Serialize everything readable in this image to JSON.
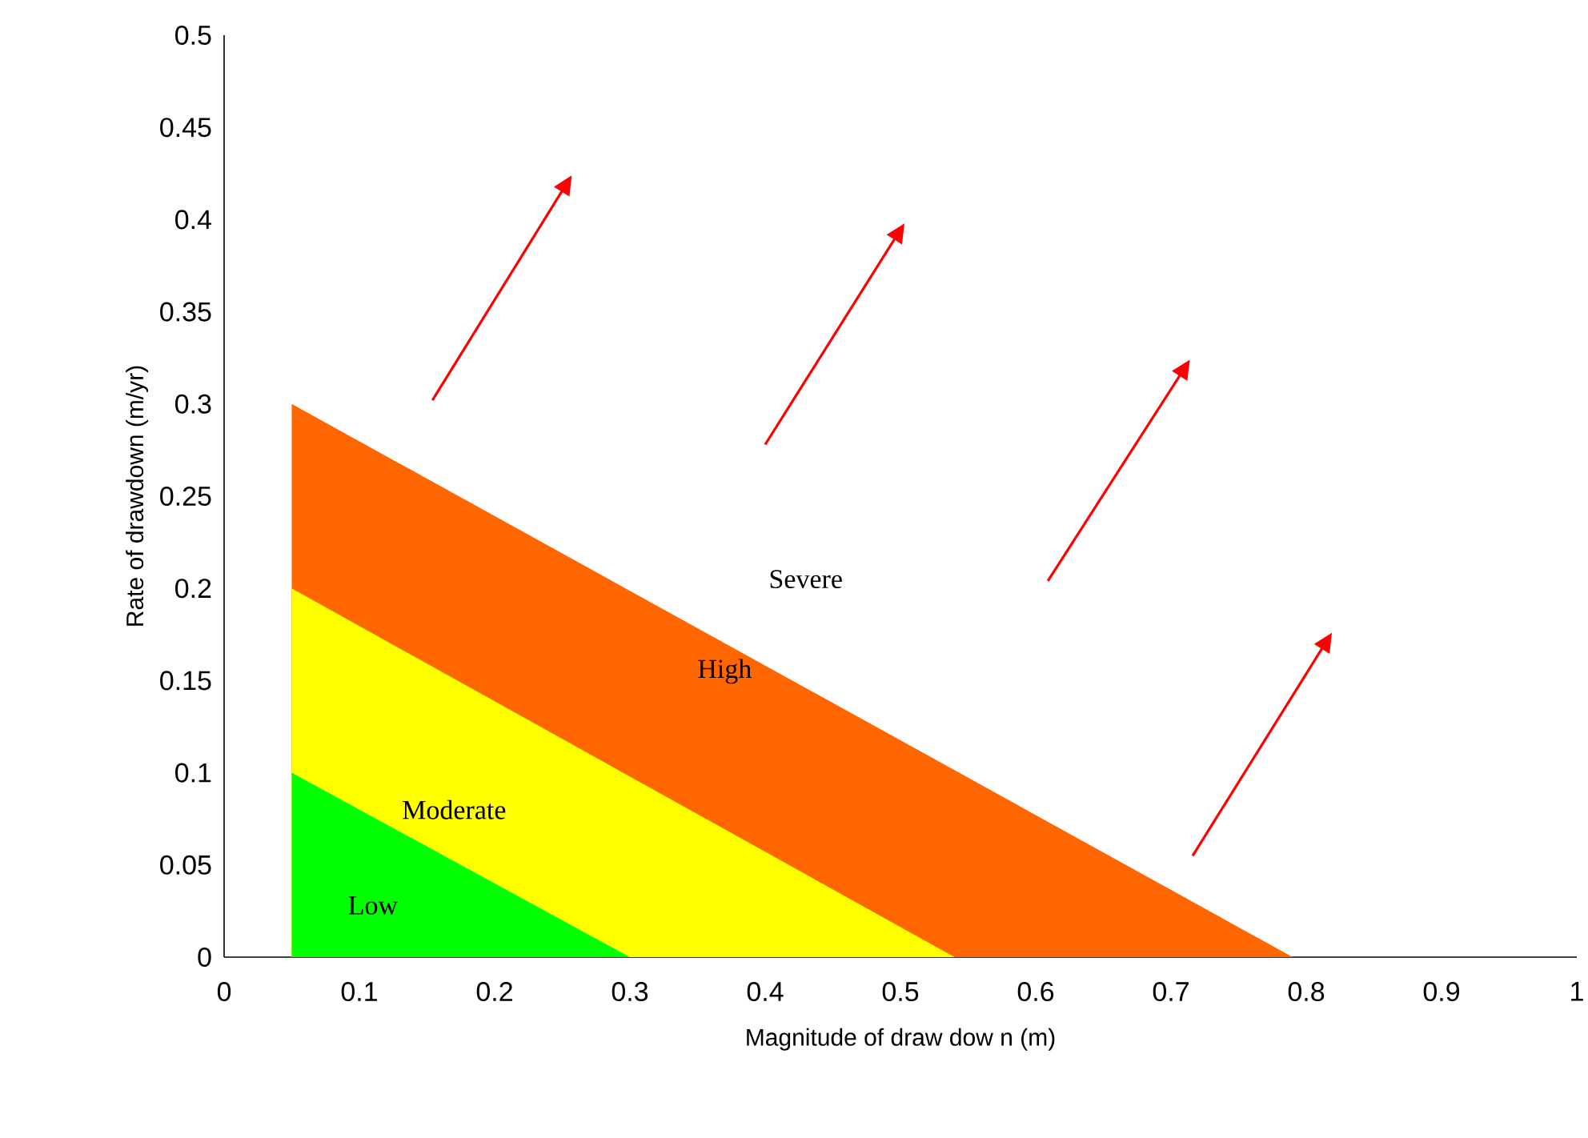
{
  "chart_data": {
    "type": "area",
    "xlabel": "Magnitude of draw dow n (m)",
    "ylabel": "Rate of drawdown (m/yr)",
    "xlim": [
      0,
      1
    ],
    "xticks": [
      0,
      0.1,
      0.2,
      0.3,
      0.4,
      0.5,
      0.6,
      0.7,
      0.8,
      0.9,
      1
    ],
    "ylim": [
      0,
      0.5
    ],
    "yticks": [
      0,
      0.05,
      0.1,
      0.15,
      0.2,
      0.25,
      0.3,
      0.35,
      0.4,
      0.45,
      0.5
    ],
    "series": [
      {
        "color": "#00ff00",
        "x": [
          0.05,
          0.3
        ],
        "values": [
          0.1,
          0
        ]
      },
      {
        "color": "#ffff00",
        "x": [
          0.05,
          0.54
        ],
        "values": [
          0.2,
          0
        ]
      },
      {
        "color": "#ff6600",
        "x": [
          0.05,
          0.79
        ],
        "values": [
          0.3,
          0
        ]
      }
    ],
    "annotations": [
      "Low",
      "Moderate",
      "High",
      "Severe"
    ]
  }
}
